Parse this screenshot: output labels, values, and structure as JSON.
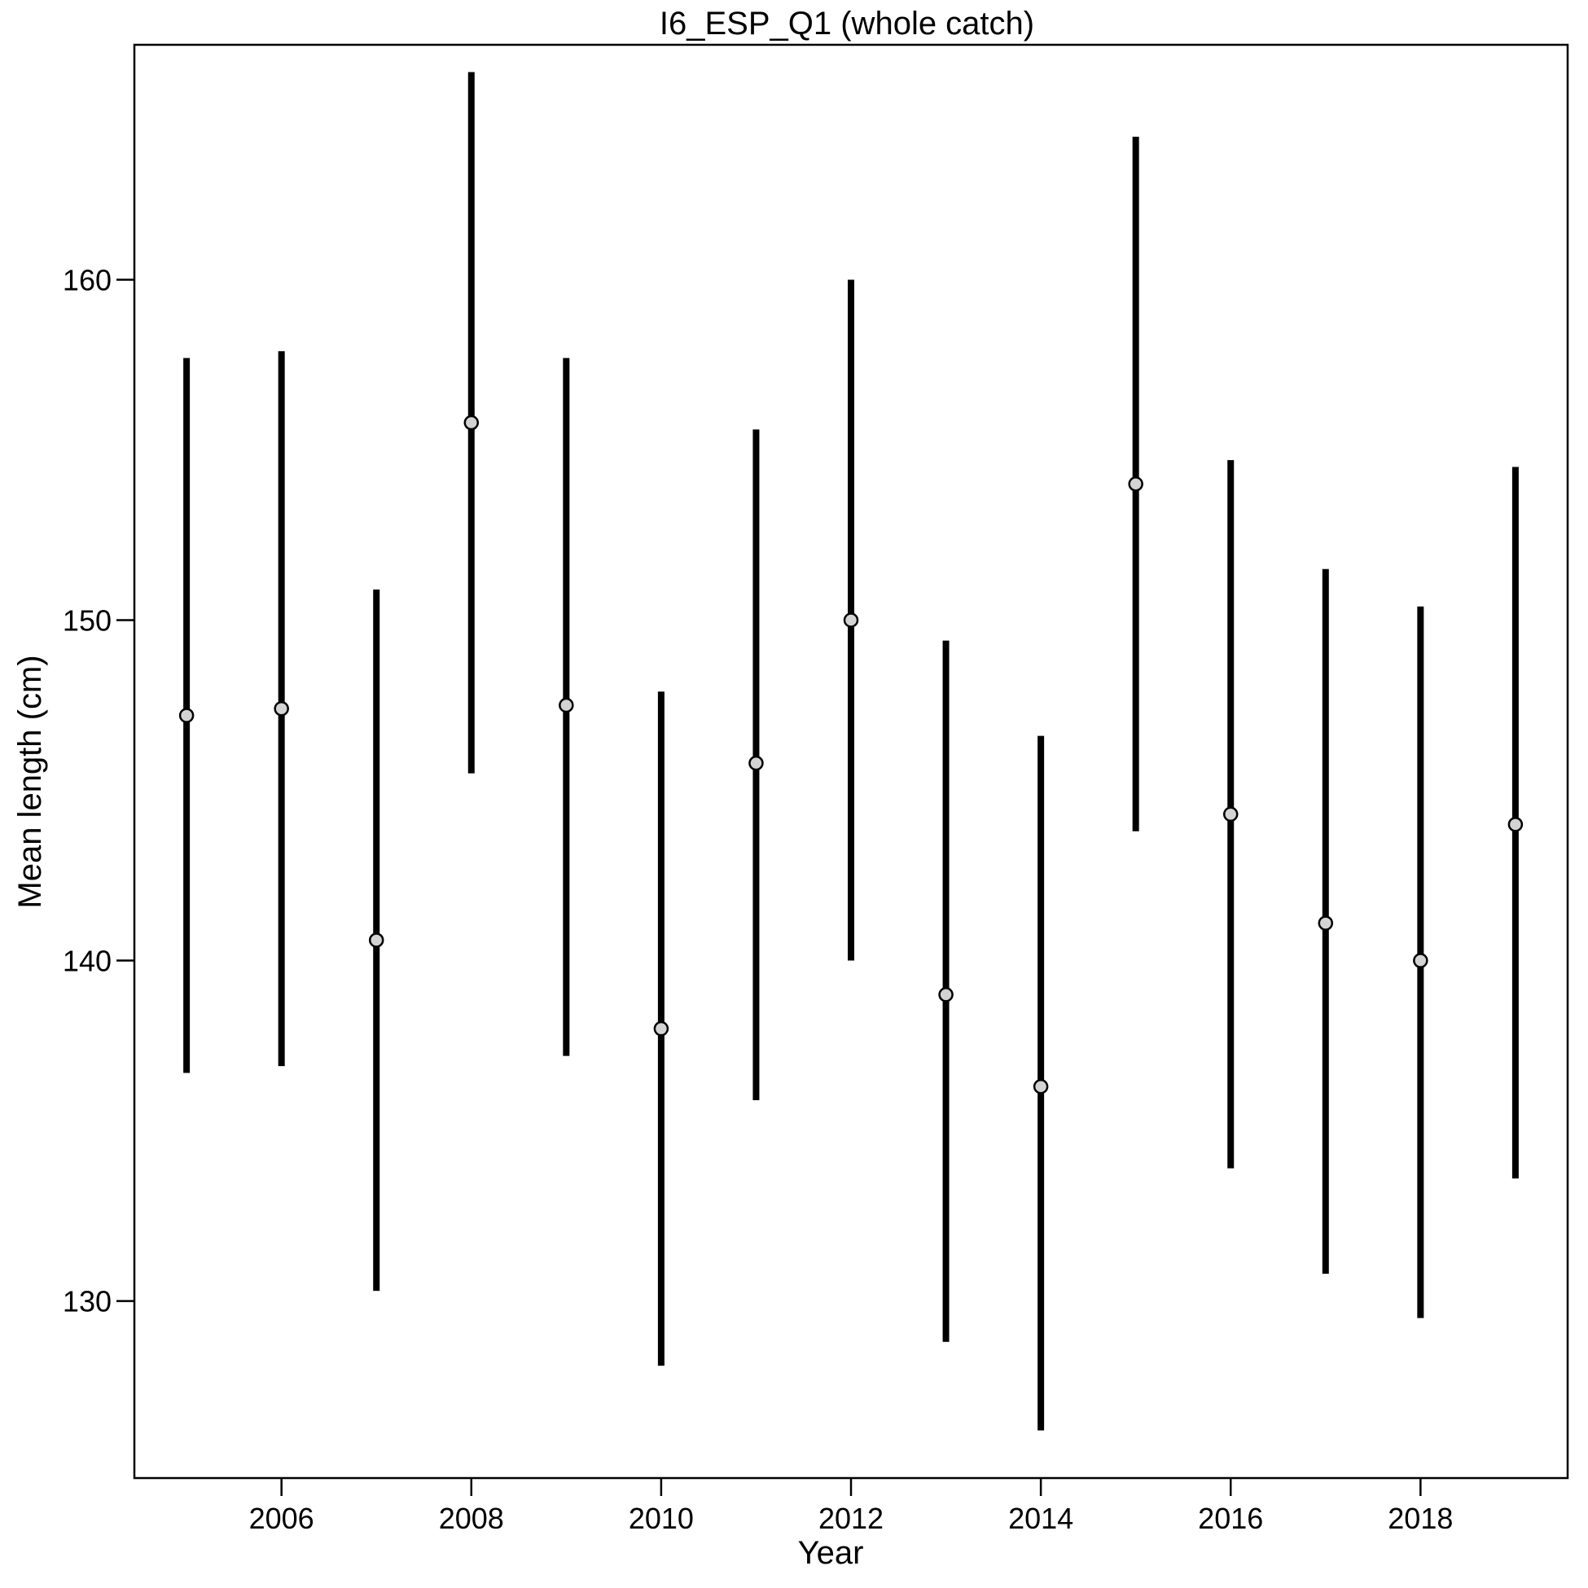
{
  "chart_data": {
    "type": "scatter",
    "title": "I6_ESP_Q1 (whole catch)",
    "xlabel": "Year",
    "ylabel": "Mean length (cm)",
    "x_ticks": [
      "2006",
      "2008",
      "2010",
      "2012",
      "2014",
      "2016",
      "2018"
    ],
    "y_ticks": [
      "130",
      "140",
      "150",
      "160"
    ],
    "xlim": [
      2004.45,
      2019.55
    ],
    "ylim": [
      124.8,
      166.9
    ],
    "grid": false,
    "legend": "none",
    "series": [
      {
        "x": [
          2005,
          2006,
          2007,
          2008,
          2009,
          2010,
          2011,
          2012,
          2013,
          2014,
          2015,
          2016,
          2017,
          2018,
          2019
        ],
        "y": [
          147.2,
          147.4,
          140.6,
          155.8,
          147.5,
          138.0,
          145.8,
          150.0,
          139.0,
          136.3,
          154.0,
          144.3,
          141.1,
          140.0,
          144.0
        ],
        "lower": [
          136.7,
          136.9,
          130.3,
          145.5,
          137.2,
          128.1,
          135.9,
          140.0,
          128.8,
          126.2,
          143.8,
          133.9,
          130.8,
          129.5,
          133.6
        ],
        "upper": [
          157.7,
          157.9,
          150.9,
          166.1,
          157.7,
          147.9,
          155.6,
          160.0,
          149.4,
          146.6,
          164.2,
          154.7,
          151.5,
          150.4,
          154.5
        ]
      }
    ],
    "marker_fill": "#d3d3d3",
    "marker_stroke": "#000000",
    "errorbar_color": "#000000"
  }
}
